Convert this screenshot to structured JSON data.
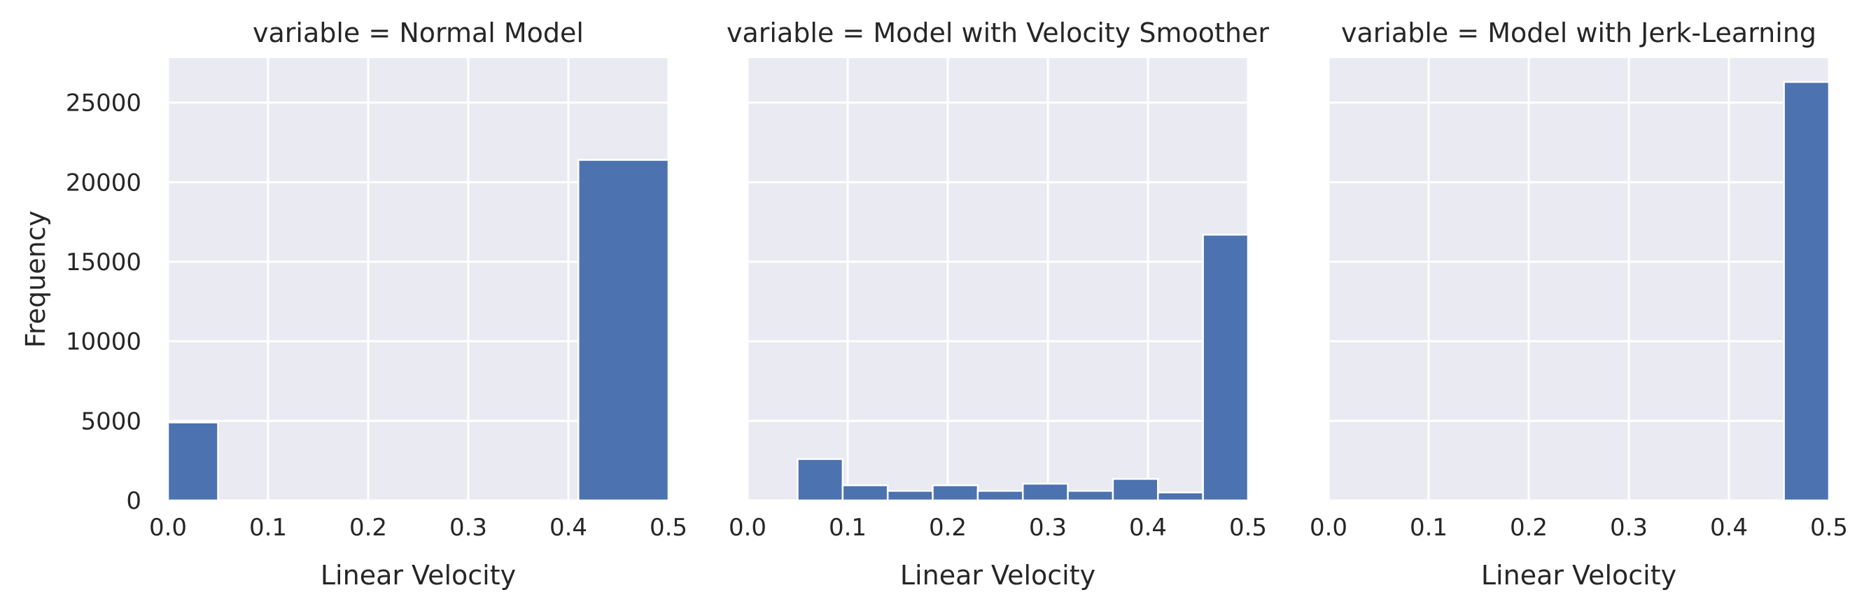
{
  "chart_data": [
    {
      "type": "bar",
      "title": "variable = Normal Model",
      "xlabel": "Linear Velocity",
      "ylabel": "Frequency",
      "xlim": [
        0.0,
        0.5
      ],
      "ylim": [
        0,
        27800
      ],
      "xticks": [
        "0.0",
        "0.1",
        "0.2",
        "0.3",
        "0.4",
        "0.5"
      ],
      "yticks": [
        "0",
        "5000",
        "10000",
        "15000",
        "20000",
        "25000"
      ],
      "grid": true,
      "bins": [
        {
          "x0": 0.0,
          "x1": 0.05,
          "count": 4900
        },
        {
          "x0": 0.41,
          "x1": 0.5,
          "count": 21400
        }
      ]
    },
    {
      "type": "bar",
      "title": "variable = Model with Velocity Smoother",
      "xlabel": "Linear Velocity",
      "ylabel": "",
      "xlim": [
        0.0,
        0.5
      ],
      "ylim": [
        0,
        27800
      ],
      "xticks": [
        "0.0",
        "0.1",
        "0.2",
        "0.3",
        "0.4",
        "0.5"
      ],
      "yticks": [],
      "grid": true,
      "bins": [
        {
          "x0": 0.05,
          "x1": 0.095,
          "count": 2600
        },
        {
          "x0": 0.095,
          "x1": 0.14,
          "count": 950
        },
        {
          "x0": 0.14,
          "x1": 0.185,
          "count": 600
        },
        {
          "x0": 0.185,
          "x1": 0.23,
          "count": 950
        },
        {
          "x0": 0.23,
          "x1": 0.275,
          "count": 600
        },
        {
          "x0": 0.275,
          "x1": 0.32,
          "count": 1050
        },
        {
          "x0": 0.32,
          "x1": 0.365,
          "count": 600
        },
        {
          "x0": 0.365,
          "x1": 0.41,
          "count": 1350
        },
        {
          "x0": 0.41,
          "x1": 0.455,
          "count": 500
        },
        {
          "x0": 0.455,
          "x1": 0.5,
          "count": 16700
        }
      ]
    },
    {
      "type": "bar",
      "title": "variable = Model with Jerk-Learning",
      "xlabel": "Linear Velocity",
      "ylabel": "",
      "xlim": [
        0.0,
        0.5
      ],
      "ylim": [
        0,
        27800
      ],
      "xticks": [
        "0.0",
        "0.1",
        "0.2",
        "0.3",
        "0.4",
        "0.5"
      ],
      "yticks": [],
      "grid": true,
      "bins": [
        {
          "x0": 0.455,
          "x1": 0.5,
          "count": 26300
        }
      ]
    }
  ]
}
